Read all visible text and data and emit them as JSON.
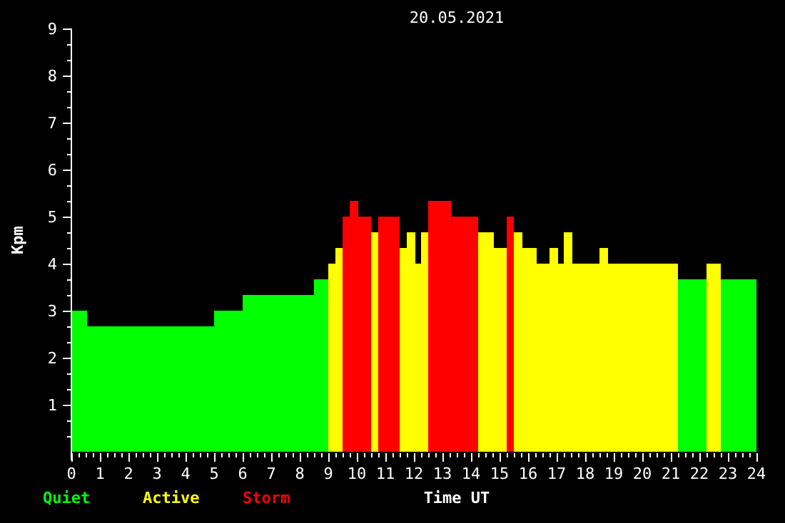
{
  "chart_data": {
    "type": "histogram",
    "title": "20.05.2021",
    "xlabel": "Time UT",
    "ylabel": "Kpm",
    "bins": [
      0,
      0.55,
      5,
      6,
      8.5,
      9,
      9.25,
      9.5,
      9.75,
      10.05,
      10.5,
      10.75,
      11.5,
      11.75,
      12.05,
      12.25,
      12.5,
      13.3,
      14.25,
      14.8,
      15.25,
      15.5,
      15.8,
      16.3,
      16.75,
      17.05,
      17.25,
      17.55,
      18.5,
      18.8,
      21.25,
      22.25,
      22.75,
      24
    ],
    "series": [
      {
        "name": "Quiet",
        "color": "#00ff00",
        "values": [
          3,
          2.67,
          3,
          3.33,
          3.67,
          null,
          null,
          null,
          null,
          null,
          null,
          null,
          null,
          null,
          null,
          null,
          null,
          null,
          null,
          null,
          null,
          null,
          null,
          null,
          null,
          null,
          null,
          null,
          null,
          null,
          3.67,
          null,
          3.67
        ]
      },
      {
        "name": "Active",
        "color": "#ffff00",
        "values": [
          null,
          null,
          null,
          null,
          null,
          4,
          4.33,
          null,
          null,
          null,
          4.67,
          null,
          4.33,
          4.67,
          4,
          4.67,
          null,
          null,
          4.67,
          4.33,
          null,
          4.67,
          4.33,
          4,
          4.33,
          4,
          4.67,
          4,
          4.33,
          4,
          null,
          4,
          null
        ]
      },
      {
        "name": "Storm",
        "color": "#ff0000",
        "values": [
          null,
          null,
          null,
          null,
          null,
          null,
          null,
          5,
          5.33,
          5,
          null,
          5,
          null,
          null,
          null,
          null,
          5.33,
          5,
          null,
          null,
          5,
          null,
          null,
          null,
          null,
          null,
          null,
          null,
          null,
          null,
          null,
          null,
          null
        ]
      }
    ],
    "xlim": [
      0,
      24
    ],
    "ylim": [
      0,
      9
    ],
    "xticks": [
      0,
      {
        "value": 0.25,
        "label": null
      },
      {
        "value": 0.5,
        "label": null
      },
      {
        "value": 0.75,
        "label": null
      },
      1,
      {
        "value": 1.25,
        "label": null
      },
      {
        "value": 1.5,
        "label": null
      },
      {
        "value": 1.75,
        "label": null
      },
      2,
      {
        "value": 2.25,
        "label": null
      },
      {
        "value": 2.5,
        "label": null
      },
      {
        "value": 2.75,
        "label": null
      },
      3,
      {
        "value": 3.25,
        "label": null
      },
      {
        "value": 3.5,
        "label": null
      },
      {
        "value": 3.75,
        "label": null
      },
      4,
      {
        "value": 4.25,
        "label": null
      },
      {
        "value": 4.5,
        "label": null
      },
      {
        "value": 4.75,
        "label": null
      },
      5,
      {
        "value": 5.25,
        "label": null
      },
      {
        "value": 5.5,
        "label": null
      },
      {
        "value": 5.75,
        "label": null
      },
      6,
      {
        "value": 6.25,
        "label": null
      },
      {
        "value": 6.5,
        "label": null
      },
      {
        "value": 6.75,
        "label": null
      },
      7,
      {
        "value": 7.25,
        "label": null
      },
      {
        "value": 7.5,
        "label": null
      },
      {
        "value": 7.75,
        "label": null
      },
      8,
      {
        "value": 8.25,
        "label": null
      },
      {
        "value": 8.5,
        "label": null
      },
      {
        "value": 8.75,
        "label": null
      },
      9,
      {
        "value": 9.25,
        "label": null
      },
      {
        "value": 9.5,
        "label": null
      },
      {
        "value": 9.75,
        "label": null
      },
      10,
      {
        "value": 10.25,
        "label": null
      },
      {
        "value": 10.5,
        "label": null
      },
      {
        "value": 10.75,
        "label": null
      },
      11,
      {
        "value": 11.25,
        "label": null
      },
      {
        "value": 11.5,
        "label": null
      },
      {
        "value": 11.75,
        "label": null
      },
      12,
      {
        "value": 12.25,
        "label": null
      },
      {
        "value": 12.5,
        "label": null
      },
      {
        "value": 12.75,
        "label": null
      },
      13,
      {
        "value": 13.25,
        "label": null
      },
      {
        "value": 13.5,
        "label": null
      },
      {
        "value": 13.75,
        "label": null
      },
      14,
      {
        "value": 14.25,
        "label": null
      },
      {
        "value": 14.5,
        "label": null
      },
      {
        "value": 14.75,
        "label": null
      },
      15,
      {
        "value": 15.25,
        "label": null
      },
      {
        "value": 15.5,
        "label": null
      },
      {
        "value": 15.75,
        "label": null
      },
      16,
      {
        "value": 16.25,
        "label": null
      },
      {
        "value": 16.5,
        "label": null
      },
      {
        "value": 16.75,
        "label": null
      },
      17,
      {
        "value": 17.25,
        "label": null
      },
      {
        "value": 17.5,
        "label": null
      },
      {
        "value": 17.75,
        "label": null
      },
      18,
      {
        "value": 18.25,
        "label": null
      },
      {
        "value": 18.5,
        "label": null
      },
      {
        "value": 18.75,
        "label": null
      },
      19,
      {
        "value": 19.25,
        "label": null
      },
      {
        "value": 19.5,
        "label": null
      },
      {
        "value": 19.75,
        "label": null
      },
      20,
      {
        "value": 20.25,
        "label": null
      },
      {
        "value": 20.5,
        "label": null
      },
      {
        "value": 20.75,
        "label": null
      },
      21,
      {
        "value": 21.25,
        "label": null
      },
      {
        "value": 21.5,
        "label": null
      },
      {
        "value": 21.75,
        "label": null
      },
      22,
      {
        "value": 22.25,
        "label": null
      },
      {
        "value": 22.5,
        "label": null
      },
      {
        "value": 22.75,
        "label": null
      },
      23,
      {
        "value": 23.25,
        "label": null
      },
      {
        "value": 23.5,
        "label": null
      },
      {
        "value": 23.75,
        "label": null
      },
      24
    ],
    "yticks": [
      {
        "value": 0.333,
        "label": null
      },
      {
        "value": 0.667,
        "label": null
      },
      1,
      {
        "value": 1.333,
        "label": null
      },
      {
        "value": 1.667,
        "label": null
      },
      2,
      {
        "value": 2.333,
        "label": null
      },
      {
        "value": 2.667,
        "label": null
      },
      3,
      {
        "value": 3.333,
        "label": null
      },
      {
        "value": 3.667,
        "label": null
      },
      4,
      {
        "value": 4.333,
        "label": null
      },
      {
        "value": 4.667,
        "label": null
      },
      5,
      {
        "value": 5.333,
        "label": null
      },
      {
        "value": 5.667,
        "label": null
      },
      6,
      {
        "value": 6.333,
        "label": null
      },
      {
        "value": 6.667,
        "label": null
      },
      7,
      {
        "value": 7.333,
        "label": null
      },
      {
        "value": 7.667,
        "label": null
      },
      8,
      {
        "value": 8.333,
        "label": null
      },
      {
        "value": 8.667,
        "label": null
      },
      9
    ],
    "legend": "bottom left"
  }
}
